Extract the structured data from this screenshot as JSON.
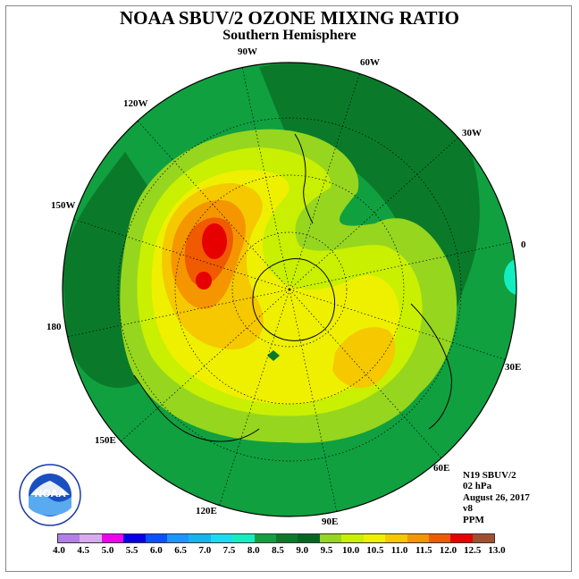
{
  "title": "NOAA SBUV/2 OZONE MIXING RATIO",
  "subtitle": "Southern Hemisphere",
  "longitude_labels": [
    "90W",
    "60W",
    "30W",
    "0",
    "30E",
    "60E",
    "90E",
    "120E",
    "150E",
    "180",
    "150W",
    "120W"
  ],
  "info": {
    "satellite": "N19 SBUV/2",
    "level": "02 hPa",
    "date": "August 26, 2017",
    "version": "v8",
    "units": "PPM"
  },
  "logo": {
    "text": "NOAA",
    "icon": "noaa-logo"
  },
  "colorbar": {
    "ticks": [
      "4.0",
      "4.5",
      "5.0",
      "5.5",
      "6.0",
      "6.5",
      "7.0",
      "7.5",
      "8.0",
      "8.5",
      "9.0",
      "9.5",
      "10.0",
      "10.5",
      "11.0",
      "11.5",
      "12.0",
      "12.5",
      "13.0"
    ],
    "colors": [
      "#b17fe6",
      "#d8aaf0",
      "#f000f0",
      "#0a00e8",
      "#0a50ff",
      "#1a96ff",
      "#14b4f0",
      "#19dcf0",
      "#13eec0",
      "#10a040",
      "#0a7a2a",
      "#076522",
      "#96d61e",
      "#c8f000",
      "#eef000",
      "#f5c800",
      "#f59600",
      "#f05a00",
      "#e60000",
      "#a05030"
    ]
  }
}
